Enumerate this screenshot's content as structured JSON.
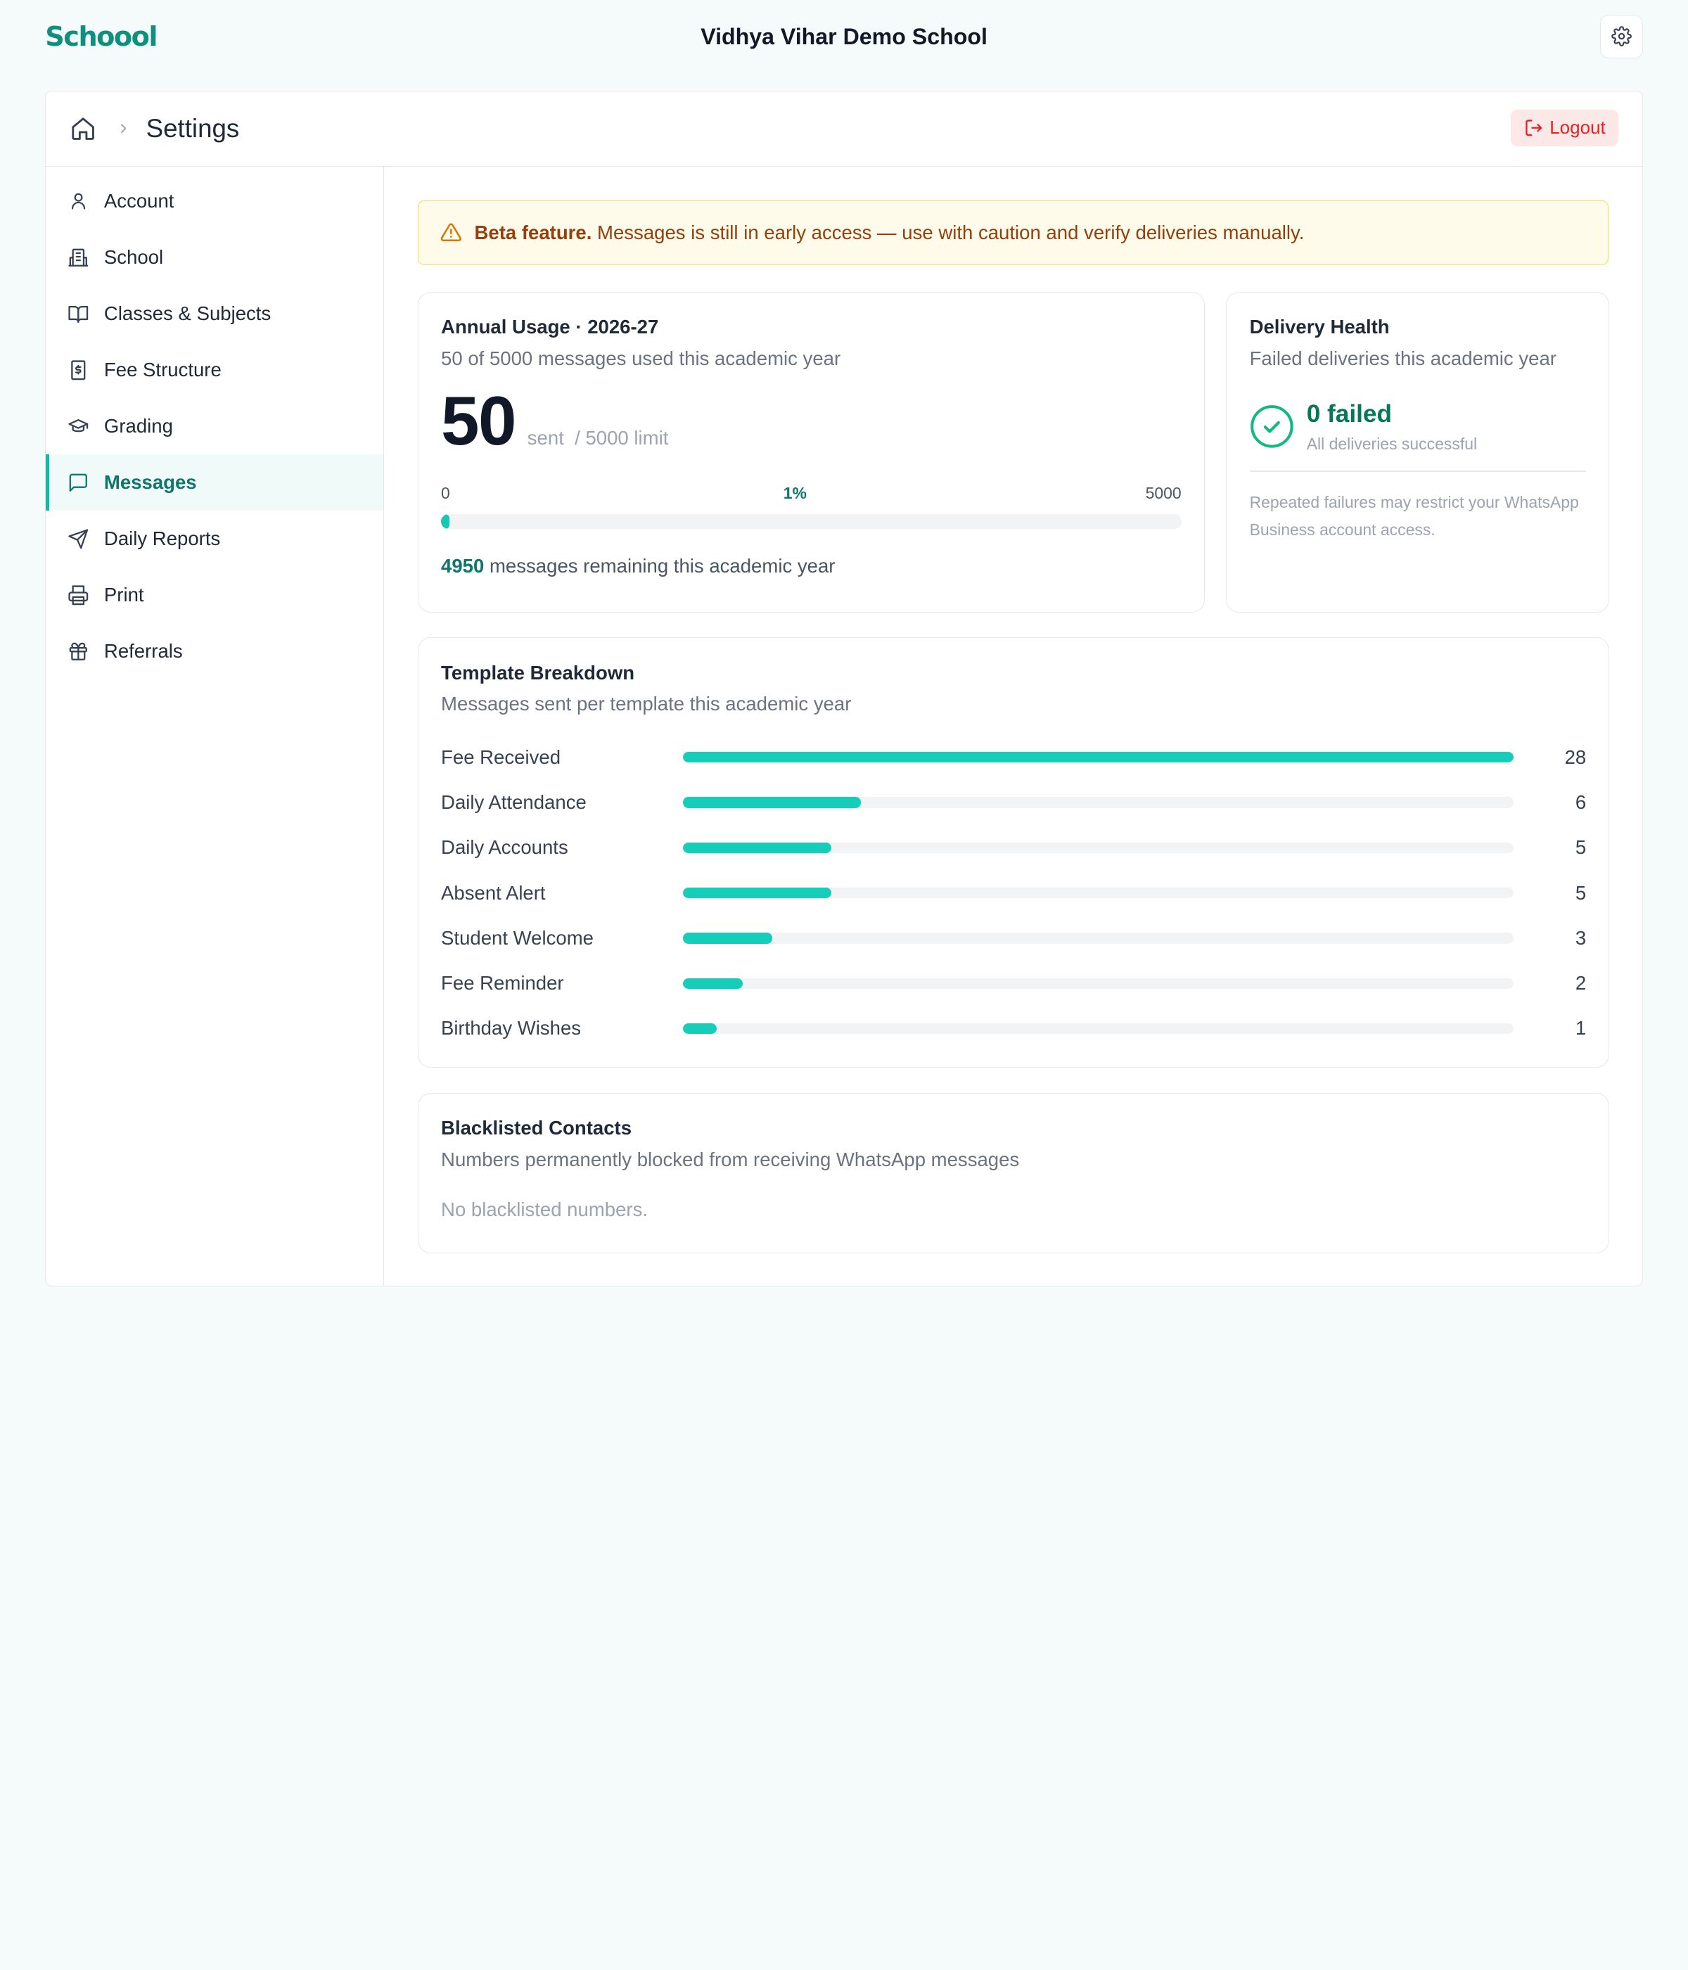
{
  "app": {
    "brand": "Schoool",
    "school_name": "Vidhya Vihar Demo School"
  },
  "header": {
    "title": "Settings",
    "logout_label": "Logout"
  },
  "sidebar": {
    "items": [
      {
        "label": "Account",
        "icon": "user-icon",
        "active": false
      },
      {
        "label": "School",
        "icon": "building-icon",
        "active": false
      },
      {
        "label": "Classes & Subjects",
        "icon": "book-icon",
        "active": false
      },
      {
        "label": "Fee Structure",
        "icon": "receipt-icon",
        "active": false
      },
      {
        "label": "Grading",
        "icon": "graduation-cap-icon",
        "active": false
      },
      {
        "label": "Messages",
        "icon": "message-icon",
        "active": true
      },
      {
        "label": "Daily Reports",
        "icon": "send-icon",
        "active": false
      },
      {
        "label": "Print",
        "icon": "printer-icon",
        "active": false
      },
      {
        "label": "Referrals",
        "icon": "gift-icon",
        "active": false
      }
    ]
  },
  "beta": {
    "strong": "Beta feature.",
    "text": "Messages is still in early access — use with caution and verify deliveries manually."
  },
  "usage": {
    "title": "Annual Usage · 2026-27",
    "subtitle": "50 of 5000 messages used this academic year",
    "sent": "50",
    "sent_label": "sent",
    "limit_label": "/ 5000 limit",
    "scale_min": "0",
    "scale_max": "5000",
    "percent_label": "1%",
    "progress_fraction": 0.01,
    "remaining_count": "4950",
    "remaining_text": "messages remaining this academic year"
  },
  "health": {
    "title": "Delivery Health",
    "subtitle": "Failed deliveries this academic year",
    "status": "0 failed",
    "status_sub": "All deliveries successful",
    "note": "Repeated failures may restrict your WhatsApp Business account access."
  },
  "templates": {
    "title": "Template Breakdown",
    "subtitle": "Messages sent per template this academic year",
    "max": 28,
    "rows": [
      {
        "label": "Fee Received",
        "value": "28"
      },
      {
        "label": "Daily Attendance",
        "value": "6"
      },
      {
        "label": "Daily Accounts",
        "value": "5"
      },
      {
        "label": "Absent Alert",
        "value": "5"
      },
      {
        "label": "Student Welcome",
        "value": "3"
      },
      {
        "label": "Fee Reminder",
        "value": "2"
      },
      {
        "label": "Birthday Wishes",
        "value": "1"
      }
    ]
  },
  "blacklist": {
    "title": "Blacklisted Contacts",
    "subtitle": "Numbers permanently blocked from receiving WhatsApp messages",
    "empty": "No blacklisted numbers."
  },
  "colors": {
    "accent": "#14c8b4",
    "brand": "#0f8f7e",
    "danger": "#dc2626",
    "warning_bg": "#fefbea"
  }
}
